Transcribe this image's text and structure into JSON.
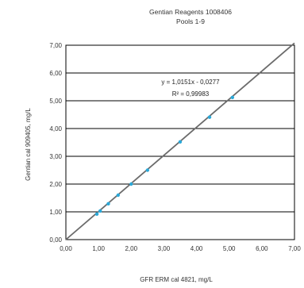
{
  "chart_data": {
    "type": "scatter",
    "title": "Gentian Reagents 1008406",
    "subtitle": "Pools 1-9",
    "xlabel": "GFR ERM cal 4821, mg/L",
    "ylabel": "Gentian cal 909405, mg/L",
    "xlim": [
      0,
      7
    ],
    "ylim": [
      0,
      7
    ],
    "xticks": [
      "0,00",
      "1,00",
      "2,00",
      "3,00",
      "4,00",
      "5,00",
      "6,00",
      "7,00"
    ],
    "yticks": [
      "0,00",
      "1,00",
      "2,00",
      "3,00",
      "4,00",
      "5,00",
      "6,00",
      "7,00"
    ],
    "grid": true,
    "legend": "none",
    "series": [
      {
        "x": [
          0.95,
          1.05,
          1.3,
          1.6,
          2.0,
          2.5,
          3.5,
          4.4,
          5.1
        ],
        "y": [
          0.92,
          1.03,
          1.29,
          1.6,
          2.0,
          2.5,
          3.52,
          4.41,
          5.12
        ]
      }
    ],
    "trendline": {
      "slope": 1.0151,
      "intercept": -0.0277
    },
    "annotations": [
      "y = 1,0151x - 0,0277",
      "R² = 0,99983"
    ],
    "colors": {
      "points": "#2aa8d8",
      "line": "#6b6b6b",
      "grid": "#000000"
    }
  }
}
